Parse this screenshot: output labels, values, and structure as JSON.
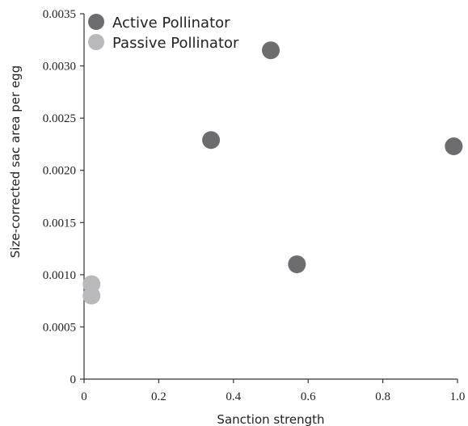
{
  "chart_data": {
    "type": "scatter",
    "xlabel": "Sanction strength",
    "ylabel": "Size-corrected sac area per egg",
    "xlim": [
      0,
      1.0
    ],
    "ylim": [
      0,
      0.0035
    ],
    "x_ticks": [
      "0",
      "0.2",
      "0.4",
      "0.6",
      "0.8",
      "1.0"
    ],
    "x_tick_values": [
      0,
      0.2,
      0.4,
      0.6,
      0.8,
      1.0
    ],
    "y_ticks": [
      "0",
      "0.0005",
      "0.0010",
      "0.0015",
      "0.0020",
      "0.0025",
      "0.0030",
      "0.0035"
    ],
    "y_tick_values": [
      0,
      0.0005,
      0.001,
      0.0015,
      0.002,
      0.0025,
      0.003,
      0.0035
    ],
    "grid": false,
    "legend_position": "top-left",
    "series": [
      {
        "name": "Active Pollinator",
        "color": "#6d6d6f",
        "points": [
          {
            "x": 0.34,
            "y": 0.00229
          },
          {
            "x": 0.5,
            "y": 0.00315
          },
          {
            "x": 0.57,
            "y": 0.0011
          },
          {
            "x": 0.99,
            "y": 0.00223
          }
        ]
      },
      {
        "name": "Passive Pollinator",
        "color": "#b9b9bb",
        "points": [
          {
            "x": 0.02,
            "y": 0.00091
          },
          {
            "x": 0.02,
            "y": 0.0008
          }
        ]
      }
    ]
  }
}
